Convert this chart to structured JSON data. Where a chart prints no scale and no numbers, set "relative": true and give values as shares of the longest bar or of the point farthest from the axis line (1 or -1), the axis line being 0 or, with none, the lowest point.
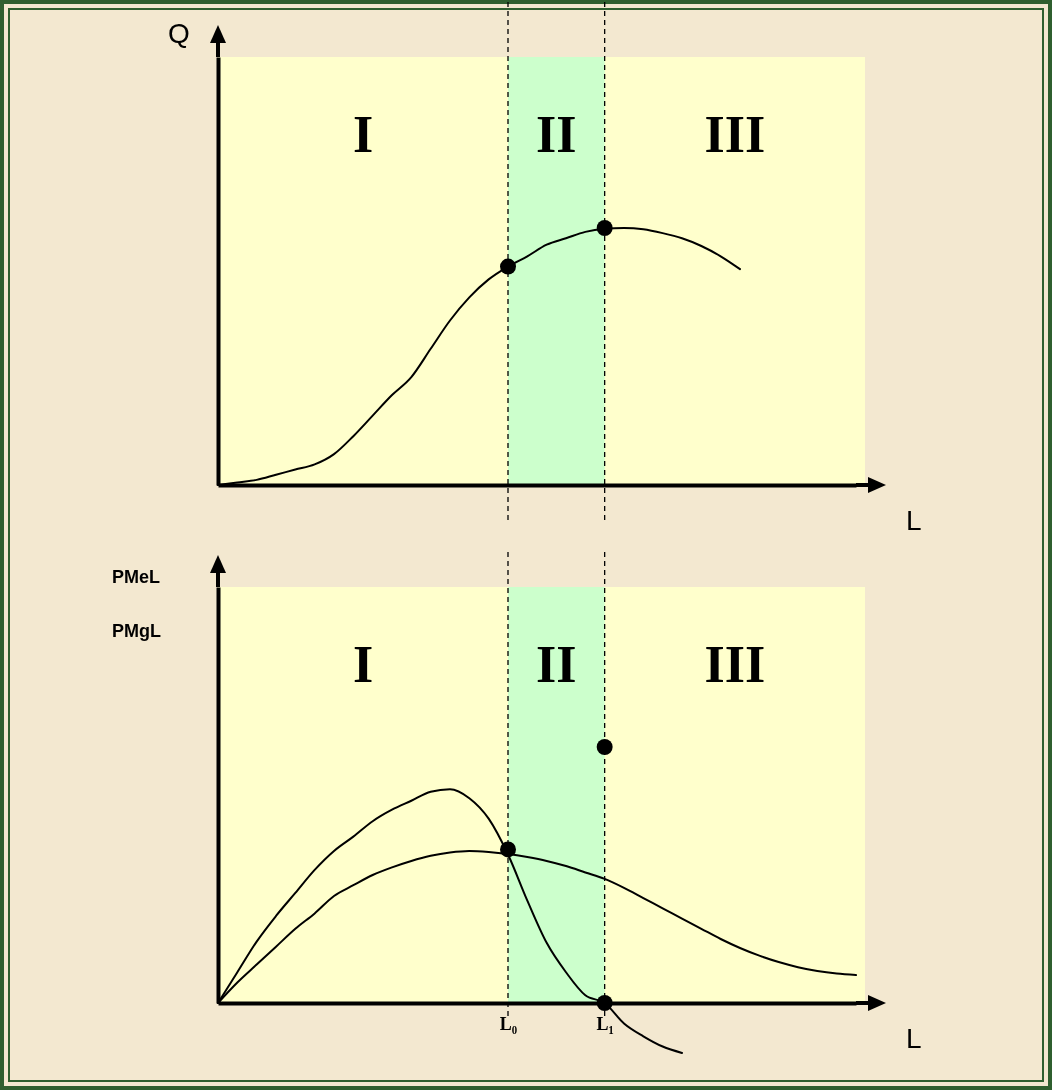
{
  "chart_data": [
    {
      "type": "line",
      "xlabel": "L",
      "ylabel": "Q",
      "relative": true,
      "tick_labels": false,
      "line_style": "solid",
      "categories": [
        null,
        null,
        null,
        null,
        null,
        null,
        null,
        null,
        null,
        null,
        null,
        null,
        null,
        null,
        null,
        "L₀",
        null,
        null,
        null,
        null,
        "L₁",
        null,
        null,
        null,
        null,
        null,
        null,
        null,
        null,
        null,
        null,
        null,
        null,
        null
      ],
      "bands": [
        {
          "axis": "x",
          "from": "L₀",
          "to": "L₁",
          "label": "II",
          "color": "#ccffcc"
        }
      ],
      "annotations": [
        "I",
        "III"
      ],
      "ref_lines": [
        {
          "axis": "x",
          "value": "L₀",
          "color": "#000000",
          "line_style": "dashed"
        },
        {
          "axis": "x",
          "value": "L₁",
          "color": "#000000",
          "line_style": "dashed"
        }
      ],
      "series": [
        {
          "type": "line",
          "color": "#000000",
          "marker": "none",
          "values": [
            0,
            0.01,
            0.02,
            0.04,
            0.06,
            0.08,
            0.12,
            0.19,
            0.27,
            0.35,
            0.42,
            0.53,
            0.64,
            0.73,
            0.8,
            0.85,
            0.89,
            0.935,
            0.96,
            0.985,
            0.997,
            1,
            0.995,
            0.98,
            0.96,
            0.93,
            0.89,
            0.84,
            null,
            null,
            null,
            null,
            null,
            null
          ]
        },
        {
          "type": "scatter",
          "color": "#000000",
          "marker": "circle",
          "values": [
            null,
            null,
            null,
            null,
            null,
            null,
            null,
            null,
            null,
            null,
            null,
            null,
            null,
            null,
            null,
            0.85,
            null,
            null,
            null,
            null,
            1,
            null,
            null,
            null,
            null,
            null,
            null,
            null,
            null,
            null,
            null,
            null,
            null,
            null
          ]
        }
      ]
    },
    {
      "type": "line",
      "xlabel": "L",
      "ylabel": "PMeL\nPMgL",
      "relative": true,
      "tick_labels": "x",
      "line_style": "solid",
      "categories": [
        null,
        null,
        null,
        null,
        null,
        null,
        null,
        null,
        null,
        null,
        null,
        null,
        null,
        null,
        null,
        "L₀",
        null,
        null,
        null,
        null,
        "L₁",
        null,
        null,
        null,
        null,
        null,
        null,
        null,
        null,
        null,
        null,
        null,
        null,
        null
      ],
      "bands": [
        {
          "axis": "x",
          "from": "L₀",
          "to": "L₁",
          "label": "II",
          "color": "#ccffcc"
        }
      ],
      "annotations": [
        "I",
        "III"
      ],
      "ref_lines": [
        {
          "axis": "x",
          "value": "L₀",
          "color": "#000000",
          "line_style": "dashed"
        },
        {
          "axis": "x",
          "value": "L₁",
          "color": "#000000",
          "line_style": "dashed"
        }
      ],
      "series": [
        {
          "type": "line",
          "color": "#000000",
          "marker": "none",
          "values": [
            0,
            0.12,
            0.24,
            0.34,
            0.43,
            0.52,
            0.594,
            0.65,
            0.71,
            0.755,
            0.79,
            0.825,
            0.835,
            0.8,
            0.72,
            0.58,
            0.4,
            0.235,
            0.12,
            0.03,
            0,
            -0.08,
            -0.13,
            -0.17,
            -0.195,
            null,
            null,
            null,
            null,
            null,
            null,
            null,
            null,
            null
          ]
        },
        {
          "type": "line",
          "color": "#000000",
          "marker": "none",
          "values": [
            0,
            0.08,
            0.15,
            0.22,
            0.29,
            0.35,
            0.418,
            0.46,
            0.5,
            0.53,
            0.555,
            0.575,
            0.588,
            0.594,
            0.59,
            0.582,
            0.57,
            0.555,
            0.535,
            0.51,
            0.485,
            0.45,
            0.41,
            0.37,
            0.33,
            0.29,
            0.25,
            0.215,
            0.185,
            0.16,
            0.14,
            0.125,
            0.115,
            0.109
          ]
        },
        {
          "type": "scatter",
          "color": "#000000",
          "marker": "circle",
          "values": [
            null,
            null,
            null,
            null,
            null,
            null,
            null,
            null,
            null,
            null,
            null,
            null,
            null,
            null,
            null,
            0.6,
            null,
            null,
            null,
            null,
            0,
            null,
            null,
            null,
            null,
            null,
            null,
            null,
            null,
            null,
            null,
            null,
            null,
            null
          ]
        },
        {
          "type": "scatter",
          "color": "#000000",
          "marker": "circle",
          "values": [
            null,
            null,
            null,
            null,
            null,
            null,
            null,
            null,
            null,
            null,
            null,
            null,
            null,
            null,
            null,
            null,
            null,
            null,
            null,
            null,
            1,
            null,
            null,
            null,
            null,
            null,
            null,
            null,
            null,
            null,
            null,
            null,
            null,
            null
          ]
        }
      ]
    }
  ]
}
